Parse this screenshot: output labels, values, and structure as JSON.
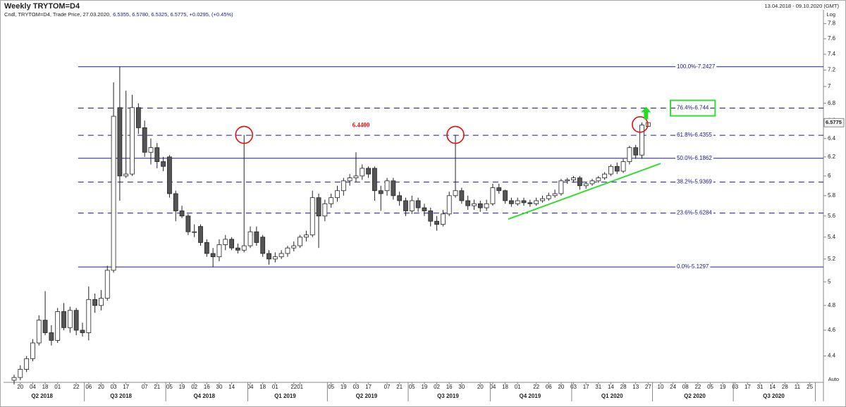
{
  "chart_data": {
    "type": "candlestick",
    "title": "Weekly TRYTOM=D4",
    "subtitle": "Cndl, TRYTOM=D4, Trade Price, 27.03.2020,",
    "subtitle_values": "6.5355, 6.5780, 6.5325, 6.5775, +0.0295, (+0.45%)",
    "date_range": "13.04.2018 - 09.10.2020 (GMT)",
    "scale_label": "Log",
    "auto_label": "Auto",
    "log_scale": true,
    "ylim": [
      4.22,
      7.93
    ],
    "yticks": [
      4.4,
      4.6,
      4.8,
      5,
      5.2,
      5.4,
      5.6,
      5.8,
      6,
      6.2,
      6.4,
      6.6,
      6.8,
      7,
      7.2,
      7.4,
      7.6,
      7.8
    ],
    "xlim": [
      -1.7,
      130.2
    ],
    "up_color": "#ffffff",
    "down_color": "#555555",
    "open": [
      4.22,
      4.24,
      4.3,
      4.38,
      4.5,
      4.68,
      4.58,
      4.52,
      4.75,
      4.62,
      4.76,
      4.6,
      4.58,
      4.85,
      4.8,
      4.86,
      5.1,
      6.75,
      6.0,
      6.02,
      6.75,
      6.52,
      6.25,
      6.3,
      6.15,
      6.2,
      5.82,
      5.65,
      5.6,
      5.45,
      5.5,
      5.35,
      5.25,
      5.22,
      5.33,
      5.38,
      5.3,
      5.28,
      5.32,
      5.45,
      5.4,
      5.25,
      5.2,
      5.22,
      5.25,
      5.3,
      5.32,
      5.4,
      5.42,
      5.78,
      5.6,
      5.72,
      5.78,
      5.85,
      5.95,
      5.98,
      6.0,
      6.08,
      6.08,
      5.85,
      5.85,
      5.95,
      5.8,
      5.75,
      5.65,
      5.75,
      5.68,
      5.65,
      5.55,
      5.52,
      5.62,
      5.8,
      5.85,
      5.75,
      5.7,
      5.72,
      5.68,
      5.72,
      5.88,
      5.85,
      5.75,
      5.72,
      5.75,
      5.73,
      5.72,
      5.75,
      5.77,
      5.8,
      5.82,
      5.95,
      5.96,
      5.98,
      5.9,
      5.92,
      5.95,
      5.98,
      6.02,
      6.1,
      6.05,
      6.15,
      6.3,
      6.22,
      6.5355
    ],
    "high": [
      4.26,
      4.33,
      4.4,
      4.53,
      4.72,
      4.92,
      4.64,
      4.78,
      4.82,
      4.79,
      4.78,
      4.66,
      4.96,
      4.9,
      4.93,
      5.14,
      7.05,
      7.24,
      6.95,
      6.9,
      6.8,
      6.6,
      6.4,
      6.35,
      6.2,
      6.22,
      5.85,
      5.7,
      5.62,
      5.52,
      5.52,
      5.38,
      5.3,
      5.38,
      5.42,
      5.4,
      5.34,
      6.44,
      5.5,
      5.5,
      5.42,
      5.28,
      5.26,
      5.28,
      5.32,
      5.36,
      5.42,
      5.46,
      5.85,
      5.82,
      5.76,
      5.82,
      5.9,
      5.98,
      6.02,
      6.25,
      6.12,
      6.1,
      6.1,
      5.9,
      5.98,
      5.98,
      5.84,
      5.78,
      5.8,
      5.78,
      5.72,
      5.68,
      5.6,
      5.66,
      5.84,
      6.44,
      5.88,
      5.8,
      5.76,
      5.75,
      5.76,
      5.92,
      5.92,
      5.86,
      5.78,
      5.78,
      5.78,
      5.76,
      5.78,
      5.8,
      5.83,
      5.86,
      5.97,
      5.98,
      6.0,
      6.0,
      5.94,
      5.97,
      6.0,
      6.04,
      6.12,
      6.14,
      6.18,
      6.32,
      6.33,
      6.58,
      6.578
    ],
    "low": [
      4.19,
      4.22,
      4.28,
      4.36,
      4.48,
      4.56,
      4.48,
      4.5,
      4.6,
      4.58,
      4.56,
      4.55,
      4.52,
      4.74,
      4.76,
      4.84,
      5.08,
      5.75,
      5.98,
      6.0,
      6.45,
      6.2,
      6.12,
      6.08,
      6.05,
      5.78,
      5.55,
      5.58,
      5.42,
      5.4,
      5.32,
      5.22,
      5.13,
      5.18,
      5.28,
      5.28,
      5.25,
      5.26,
      5.3,
      5.32,
      5.22,
      5.15,
      5.17,
      5.2,
      5.22,
      5.27,
      5.3,
      5.36,
      5.4,
      5.3,
      5.55,
      5.68,
      5.74,
      5.8,
      5.9,
      5.94,
      5.96,
      5.98,
      5.75,
      5.65,
      5.8,
      5.76,
      5.7,
      5.6,
      5.62,
      5.64,
      5.6,
      5.5,
      5.46,
      5.5,
      5.6,
      5.78,
      5.72,
      5.66,
      5.66,
      5.64,
      5.65,
      5.7,
      5.82,
      5.72,
      5.69,
      5.7,
      5.7,
      5.69,
      5.7,
      5.73,
      5.75,
      5.78,
      5.8,
      5.92,
      5.93,
      5.86,
      5.87,
      5.9,
      5.93,
      5.96,
      6.0,
      6.02,
      6.03,
      6.12,
      6.18,
      6.18,
      6.5325
    ],
    "close": [
      4.24,
      4.3,
      4.38,
      4.5,
      4.68,
      4.58,
      4.52,
      4.75,
      4.62,
      4.76,
      4.6,
      4.58,
      4.85,
      4.8,
      4.86,
      5.1,
      6.65,
      6.0,
      6.02,
      6.75,
      6.52,
      6.25,
      6.3,
      6.15,
      6.1,
      5.82,
      5.65,
      5.6,
      5.45,
      5.45,
      5.35,
      5.25,
      5.22,
      5.33,
      5.38,
      5.3,
      5.28,
      5.32,
      5.45,
      5.35,
      5.25,
      5.2,
      5.22,
      5.25,
      5.3,
      5.32,
      5.4,
      5.42,
      5.78,
      5.6,
      5.72,
      5.78,
      5.85,
      5.95,
      5.98,
      6.0,
      6.08,
      6.02,
      5.85,
      5.82,
      5.95,
      5.8,
      5.75,
      5.65,
      5.75,
      5.68,
      5.65,
      5.55,
      5.52,
      5.62,
      5.8,
      5.85,
      5.75,
      5.7,
      5.72,
      5.68,
      5.72,
      5.88,
      5.85,
      5.75,
      5.72,
      5.75,
      5.73,
      5.72,
      5.75,
      5.77,
      5.8,
      5.82,
      5.95,
      5.96,
      5.98,
      5.9,
      5.92,
      5.95,
      5.98,
      6.02,
      6.1,
      6.05,
      6.15,
      6.3,
      6.22,
      6.55,
      6.5775
    ],
    "fib_x_start": 10.3,
    "fib_color": "#1a1a8c",
    "fib_levels": [
      {
        "label": "100.0%-7.2427",
        "value": 7.2427,
        "dashed": false
      },
      {
        "label": "76.4%-6.744",
        "value": 6.744,
        "dashed": true,
        "highlight": "#33dd33"
      },
      {
        "label": "61.8%-6.4355",
        "value": 6.4355,
        "dashed": true
      },
      {
        "label": "50.0%-6.1862",
        "value": 6.1862,
        "dashed": false
      },
      {
        "label": "38.2%-5.9369",
        "value": 5.9369,
        "dashed": true
      },
      {
        "label": "23.6%-5.6284",
        "value": 5.6284,
        "dashed": true
      },
      {
        "label": "0.0%-5.1297",
        "value": 5.1297,
        "dashed": false
      }
    ],
    "annotation": "6.4400",
    "trendline": {
      "x": [
        79.5,
        104
      ],
      "y": [
        5.57,
        6.13
      ],
      "color": "#33dd33"
    },
    "xticks": [
      {
        "value": 1,
        "label": "20"
      },
      {
        "value": 3,
        "label": "04"
      },
      {
        "value": 5,
        "label": "18"
      },
      {
        "value": 7,
        "label": "01"
      },
      {
        "value": 10,
        "label": "22"
      },
      {
        "value": 12,
        "label": "06"
      },
      {
        "value": 14,
        "label": "20"
      },
      {
        "value": 16,
        "label": "03"
      },
      {
        "value": 18,
        "label": "17"
      },
      {
        "value": 21,
        "label": "07"
      },
      {
        "value": 23,
        "label": "21"
      },
      {
        "value": 25,
        "label": "05"
      },
      {
        "value": 27,
        "label": "19"
      },
      {
        "value": 29,
        "label": "02"
      },
      {
        "value": 31,
        "label": "16"
      },
      {
        "value": 33,
        "label": "30"
      },
      {
        "value": 35,
        "label": "14"
      },
      {
        "value": 38,
        "label": "04"
      },
      {
        "value": 40,
        "label": "18"
      },
      {
        "value": 42,
        "label": "01"
      },
      {
        "value": 45,
        "label": "22"
      },
      {
        "value": 46,
        "label": "01"
      },
      {
        "value": 51,
        "label": "05"
      },
      {
        "value": 53,
        "label": "19"
      },
      {
        "value": 55,
        "label": "03"
      },
      {
        "value": 57,
        "label": "17"
      },
      {
        "value": 60,
        "label": "07"
      },
      {
        "value": 62,
        "label": "21"
      },
      {
        "value": 64,
        "label": "05"
      },
      {
        "value": 66,
        "label": "19"
      },
      {
        "value": 68,
        "label": "02"
      },
      {
        "value": 70,
        "label": "16"
      },
      {
        "value": 72,
        "label": "30"
      },
      {
        "value": 75,
        "label": "20"
      },
      {
        "value": 77,
        "label": "04"
      },
      {
        "value": 79,
        "label": "18"
      },
      {
        "value": 81,
        "label": "01"
      },
      {
        "value": 84,
        "label": "22"
      },
      {
        "value": 86,
        "label": "06"
      },
      {
        "value": 88,
        "label": "20"
      },
      {
        "value": 90,
        "label": "03"
      },
      {
        "value": 92,
        "label": "17"
      },
      {
        "value": 94,
        "label": "31"
      },
      {
        "value": 96,
        "label": "14"
      },
      {
        "value": 98,
        "label": "28"
      },
      {
        "value": 100,
        "label": "13"
      },
      {
        "value": 102,
        "label": "27"
      },
      {
        "value": 104,
        "label": "10"
      },
      {
        "value": 106,
        "label": "24"
      },
      {
        "value": 108,
        "label": "08"
      },
      {
        "value": 110,
        "label": "22"
      },
      {
        "value": 112,
        "label": "05"
      },
      {
        "value": 114,
        "label": "19"
      },
      {
        "value": 116,
        "label": "03"
      },
      {
        "value": 118,
        "label": "17"
      },
      {
        "value": 120,
        "label": "31"
      },
      {
        "value": 122,
        "label": "14"
      },
      {
        "value": 124,
        "label": "28"
      },
      {
        "value": 126,
        "label": "11"
      },
      {
        "value": 128,
        "label": "25"
      }
    ],
    "quarters": [
      {
        "value": 4.5,
        "label": "Q2 2018"
      },
      {
        "value": 17.2,
        "label": "Q3 2018"
      },
      {
        "value": 30.6,
        "label": "Q4 2018"
      },
      {
        "value": 43.6,
        "label": "Q1 2019"
      },
      {
        "value": 56.7,
        "label": "Q2 2019"
      },
      {
        "value": 69.8,
        "label": "Q3 2019"
      },
      {
        "value": 83,
        "label": "Q4 2019"
      },
      {
        "value": 96.2,
        "label": "Q1 2020"
      },
      {
        "value": 109.5,
        "label": "Q2 2020"
      },
      {
        "value": 122.2,
        "label": "Q3 2020"
      }
    ],
    "quarter_bounds": [
      11.3,
      24.4,
      37.6,
      50.4,
      63.4,
      76.6,
      89.7,
      102.7,
      115.7,
      128.9
    ]
  }
}
